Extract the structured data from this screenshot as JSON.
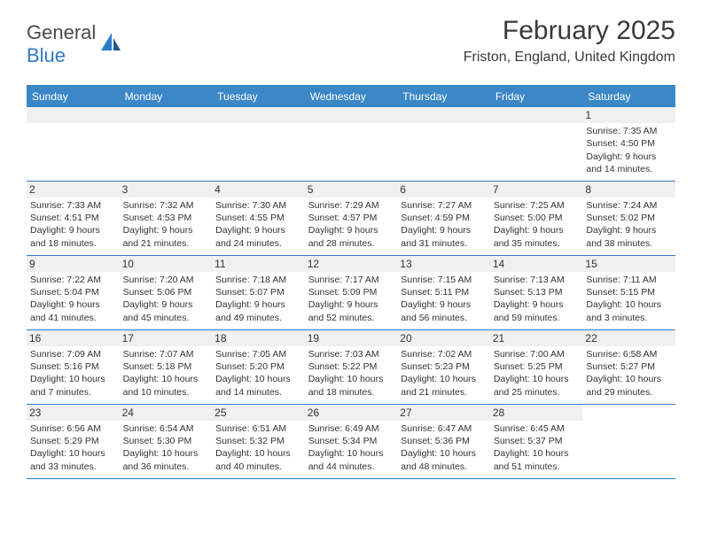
{
  "logo": {
    "text1": "General",
    "text2": "Blue"
  },
  "header": {
    "title": "February 2025",
    "location": "Friston, England, United Kingdom"
  },
  "colors": {
    "accent": "#2f7ac5",
    "header_bg": "#3b87c8",
    "grey_row": "#f0f0f0",
    "text": "#333333"
  },
  "weekdays": [
    "Sunday",
    "Monday",
    "Tuesday",
    "Wednesday",
    "Thursday",
    "Friday",
    "Saturday"
  ],
  "days": {
    "1": {
      "sunrise": "7:35 AM",
      "sunset": "4:50 PM",
      "daylight": "9 hours and 14 minutes."
    },
    "2": {
      "sunrise": "7:33 AM",
      "sunset": "4:51 PM",
      "daylight": "9 hours and 18 minutes."
    },
    "3": {
      "sunrise": "7:32 AM",
      "sunset": "4:53 PM",
      "daylight": "9 hours and 21 minutes."
    },
    "4": {
      "sunrise": "7:30 AM",
      "sunset": "4:55 PM",
      "daylight": "9 hours and 24 minutes."
    },
    "5": {
      "sunrise": "7:29 AM",
      "sunset": "4:57 PM",
      "daylight": "9 hours and 28 minutes."
    },
    "6": {
      "sunrise": "7:27 AM",
      "sunset": "4:59 PM",
      "daylight": "9 hours and 31 minutes."
    },
    "7": {
      "sunrise": "7:25 AM",
      "sunset": "5:00 PM",
      "daylight": "9 hours and 35 minutes."
    },
    "8": {
      "sunrise": "7:24 AM",
      "sunset": "5:02 PM",
      "daylight": "9 hours and 38 minutes."
    },
    "9": {
      "sunrise": "7:22 AM",
      "sunset": "5:04 PM",
      "daylight": "9 hours and 41 minutes."
    },
    "10": {
      "sunrise": "7:20 AM",
      "sunset": "5:06 PM",
      "daylight": "9 hours and 45 minutes."
    },
    "11": {
      "sunrise": "7:18 AM",
      "sunset": "5:07 PM",
      "daylight": "9 hours and 49 minutes."
    },
    "12": {
      "sunrise": "7:17 AM",
      "sunset": "5:09 PM",
      "daylight": "9 hours and 52 minutes."
    },
    "13": {
      "sunrise": "7:15 AM",
      "sunset": "5:11 PM",
      "daylight": "9 hours and 56 minutes."
    },
    "14": {
      "sunrise": "7:13 AM",
      "sunset": "5:13 PM",
      "daylight": "9 hours and 59 minutes."
    },
    "15": {
      "sunrise": "7:11 AM",
      "sunset": "5:15 PM",
      "daylight": "10 hours and 3 minutes."
    },
    "16": {
      "sunrise": "7:09 AM",
      "sunset": "5:16 PM",
      "daylight": "10 hours and 7 minutes."
    },
    "17": {
      "sunrise": "7:07 AM",
      "sunset": "5:18 PM",
      "daylight": "10 hours and 10 minutes."
    },
    "18": {
      "sunrise": "7:05 AM",
      "sunset": "5:20 PM",
      "daylight": "10 hours and 14 minutes."
    },
    "19": {
      "sunrise": "7:03 AM",
      "sunset": "5:22 PM",
      "daylight": "10 hours and 18 minutes."
    },
    "20": {
      "sunrise": "7:02 AM",
      "sunset": "5:23 PM",
      "daylight": "10 hours and 21 minutes."
    },
    "21": {
      "sunrise": "7:00 AM",
      "sunset": "5:25 PM",
      "daylight": "10 hours and 25 minutes."
    },
    "22": {
      "sunrise": "6:58 AM",
      "sunset": "5:27 PM",
      "daylight": "10 hours and 29 minutes."
    },
    "23": {
      "sunrise": "6:56 AM",
      "sunset": "5:29 PM",
      "daylight": "10 hours and 33 minutes."
    },
    "24": {
      "sunrise": "6:54 AM",
      "sunset": "5:30 PM",
      "daylight": "10 hours and 36 minutes."
    },
    "25": {
      "sunrise": "6:51 AM",
      "sunset": "5:32 PM",
      "daylight": "10 hours and 40 minutes."
    },
    "26": {
      "sunrise": "6:49 AM",
      "sunset": "5:34 PM",
      "daylight": "10 hours and 44 minutes."
    },
    "27": {
      "sunrise": "6:47 AM",
      "sunset": "5:36 PM",
      "daylight": "10 hours and 48 minutes."
    },
    "28": {
      "sunrise": "6:45 AM",
      "sunset": "5:37 PM",
      "daylight": "10 hours and 51 minutes."
    }
  },
  "labels": {
    "sunrise": "Sunrise: ",
    "sunset": "Sunset: ",
    "daylight": "Daylight: "
  },
  "layout": {
    "first_day_column": 6,
    "num_days": 28
  }
}
